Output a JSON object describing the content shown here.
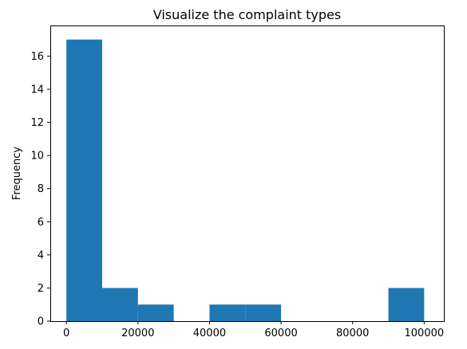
{
  "chart_data": {
    "type": "bar",
    "title": "Visualize the complaint types",
    "xlabel": "",
    "ylabel": "Frequency",
    "xlim": [
      -4500,
      105500
    ],
    "ylim": [
      0,
      17.85
    ],
    "bins": [
      {
        "start": 0,
        "end": 10000,
        "count": 17
      },
      {
        "start": 10000,
        "end": 20000,
        "count": 2
      },
      {
        "start": 20000,
        "end": 30000,
        "count": 1
      },
      {
        "start": 30000,
        "end": 40000,
        "count": 0
      },
      {
        "start": 40000,
        "end": 50000,
        "count": 1
      },
      {
        "start": 50000,
        "end": 60000,
        "count": 1
      },
      {
        "start": 60000,
        "end": 70000,
        "count": 0
      },
      {
        "start": 70000,
        "end": 80000,
        "count": 0
      },
      {
        "start": 80000,
        "end": 90000,
        "count": 0
      },
      {
        "start": 90000,
        "end": 100000,
        "count": 2
      }
    ],
    "x_ticks": [
      0,
      20000,
      40000,
      60000,
      80000,
      100000
    ],
    "y_ticks": [
      0,
      2,
      4,
      6,
      8,
      10,
      12,
      14,
      16
    ],
    "bar_color": "#1f77b4",
    "grid": false,
    "legend": "none"
  }
}
